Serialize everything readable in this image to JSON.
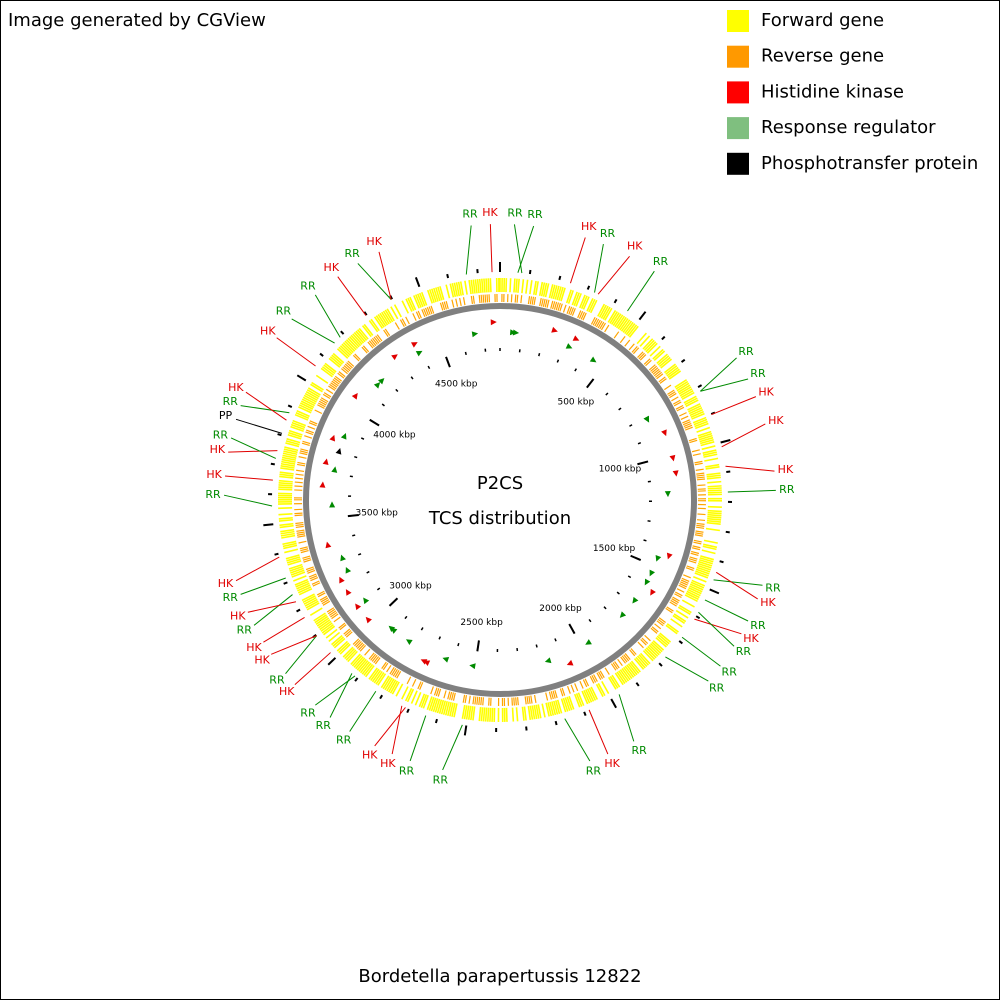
{
  "header": {
    "credit": "Image generated by CGView"
  },
  "legend": [
    {
      "label": "Forward gene",
      "color": "#ffff00"
    },
    {
      "label": "Reverse gene",
      "color": "#ff9900"
    },
    {
      "label": "Histidine kinase",
      "color": "#ff0000"
    },
    {
      "label": "Response regulator",
      "color": "#7fbf7f"
    },
    {
      "label": "Phosphotransfer protein",
      "color": "#000000"
    }
  ],
  "center": {
    "line1": "P2CS",
    "line2": "TCS distribution"
  },
  "caption": "Bordetella parapertussis 12822",
  "ruler": [
    {
      "value": 500,
      "label": "500 kbp"
    },
    {
      "value": 1000,
      "label": "1000 kbp"
    },
    {
      "value": 1500,
      "label": "1500 kbp"
    },
    {
      "value": 2000,
      "label": "2000 kbp"
    },
    {
      "value": 2500,
      "label": "2500 kbp"
    },
    {
      "value": 3000,
      "label": "3000 kbp"
    },
    {
      "value": 3500,
      "label": "3500 kbp"
    },
    {
      "value": 4000,
      "label": "4000 kbp"
    },
    {
      "value": 4500,
      "label": "4500 kbp"
    }
  ],
  "label_colors": {
    "HK": "#e00000",
    "RR": "#008a00",
    "PP": "#000000"
  },
  "features": [
    "RR",
    "HK",
    "RR",
    "RR",
    "HK",
    "RR",
    "HK",
    "RR",
    "RR",
    "RR",
    "HK",
    "HK",
    "HK",
    "RR",
    "RR",
    "HK",
    "RR",
    "HK",
    "RR",
    "RR",
    "RR",
    "RR",
    "HK",
    "RR",
    "RR",
    "RR",
    "HK",
    "HK",
    "RR",
    "RR",
    "RR",
    "HK",
    "RR",
    "HK",
    "HK",
    "RR",
    "HK",
    "RR",
    "HK",
    "RR",
    "HK",
    "HK",
    "RR",
    "PP",
    "RR",
    "HK",
    "HK",
    "RR",
    "RR",
    "HK",
    "RR",
    "HK"
  ]
}
